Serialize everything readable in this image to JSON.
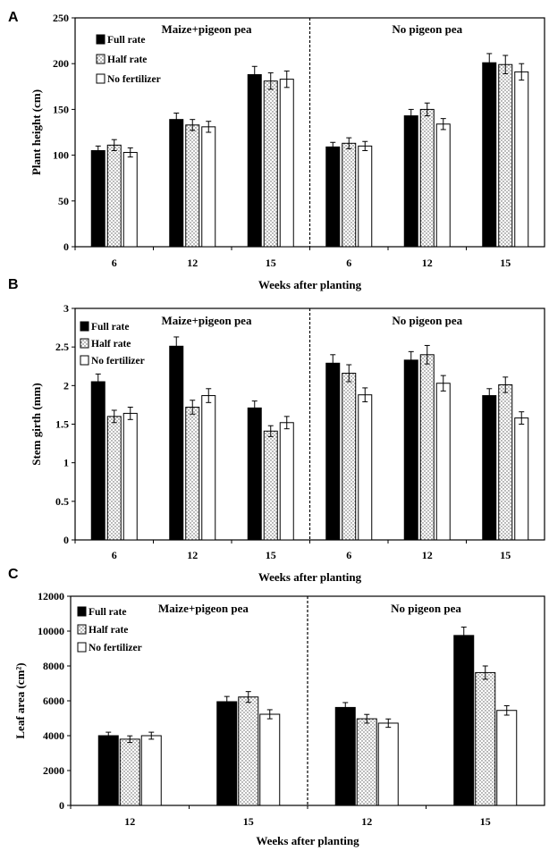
{
  "chart_data": [
    {
      "panel": "A",
      "type": "bar",
      "ylabel": "Plant height (cm)",
      "xlabel": "Weeks after planting",
      "ylim": [
        0,
        250
      ],
      "yticks": [
        "0",
        "50",
        "100",
        "150",
        "200",
        "250"
      ],
      "groups": [
        "Maize+pigeon pea",
        "No pigeon pea"
      ],
      "categories": [
        "6",
        "12",
        "15",
        "6",
        "12",
        "15"
      ],
      "legend": [
        "Full rate",
        "Half rate",
        "No fertilizer"
      ],
      "legend_placement": "top-left",
      "series": [
        {
          "name": "Full rate",
          "values": [
            105,
            139,
            188,
            109,
            143,
            201
          ],
          "errors": [
            5,
            7,
            9,
            5,
            7,
            10
          ]
        },
        {
          "name": "Half rate",
          "values": [
            111,
            133,
            181,
            113,
            150,
            199
          ],
          "errors": [
            6,
            6,
            9,
            6,
            7,
            10
          ]
        },
        {
          "name": "No fertilizer",
          "values": [
            103,
            131,
            183,
            110,
            134,
            191
          ],
          "errors": [
            5,
            6,
            9,
            5,
            6,
            9
          ]
        }
      ]
    },
    {
      "panel": "B",
      "type": "bar",
      "ylabel": "Stem girth (mm)",
      "xlabel": "Weeks after planting",
      "ylim": [
        0,
        3
      ],
      "yticks": [
        "0",
        "0.5",
        "1",
        "1.5",
        "2",
        "2.5",
        "3"
      ],
      "groups": [
        "Maize+pigeon pea",
        "No pigeon pea"
      ],
      "categories": [
        "6",
        "12",
        "15",
        "6",
        "12",
        "15"
      ],
      "legend": [
        "Full rate",
        "Half rate",
        "No fertilizer"
      ],
      "legend_placement": "top-left",
      "series": [
        {
          "name": "Full rate",
          "values": [
            2.05,
            2.51,
            1.71,
            2.29,
            2.33,
            1.87
          ],
          "errors": [
            0.1,
            0.12,
            0.09,
            0.11,
            0.11,
            0.09
          ]
        },
        {
          "name": "Half rate",
          "values": [
            1.6,
            1.72,
            1.41,
            2.16,
            2.4,
            2.01
          ],
          "errors": [
            0.08,
            0.09,
            0.07,
            0.11,
            0.12,
            0.1
          ]
        },
        {
          "name": "No fertilizer",
          "values": [
            1.64,
            1.87,
            1.52,
            1.88,
            2.03,
            1.58
          ],
          "errors": [
            0.08,
            0.09,
            0.08,
            0.09,
            0.1,
            0.08
          ]
        }
      ]
    },
    {
      "panel": "C",
      "type": "bar",
      "ylabel": "Leaf area (cm²)",
      "xlabel": "Weeks after planting",
      "ylim": [
        0,
        12000
      ],
      "yticks": [
        "0",
        "2000",
        "4000",
        "6000",
        "8000",
        "10000",
        "12000"
      ],
      "groups": [
        "Maize+pigeon pea",
        "No pigeon pea"
      ],
      "categories": [
        "12",
        "15",
        "12",
        "15"
      ],
      "legend": [
        "Full rate",
        "Half rate",
        "No fertilizer"
      ],
      "legend_placement": "top-left",
      "series": [
        {
          "name": "Full rate",
          "values": [
            4000,
            5950,
            5620,
            9750
          ],
          "errors": [
            200,
            300,
            280,
            480
          ]
        },
        {
          "name": "Half rate",
          "values": [
            3800,
            6220,
            4970,
            7620
          ],
          "errors": [
            190,
            310,
            250,
            380
          ]
        },
        {
          "name": "No fertilizer",
          "values": [
            4000,
            5230,
            4720,
            5450
          ],
          "errors": [
            200,
            260,
            240,
            270
          ]
        }
      ]
    }
  ],
  "colors": {
    "full_rate": "#000000",
    "half_rate_dots": "#555555",
    "no_fertilizer": "#ffffff",
    "stroke": "#000000"
  }
}
